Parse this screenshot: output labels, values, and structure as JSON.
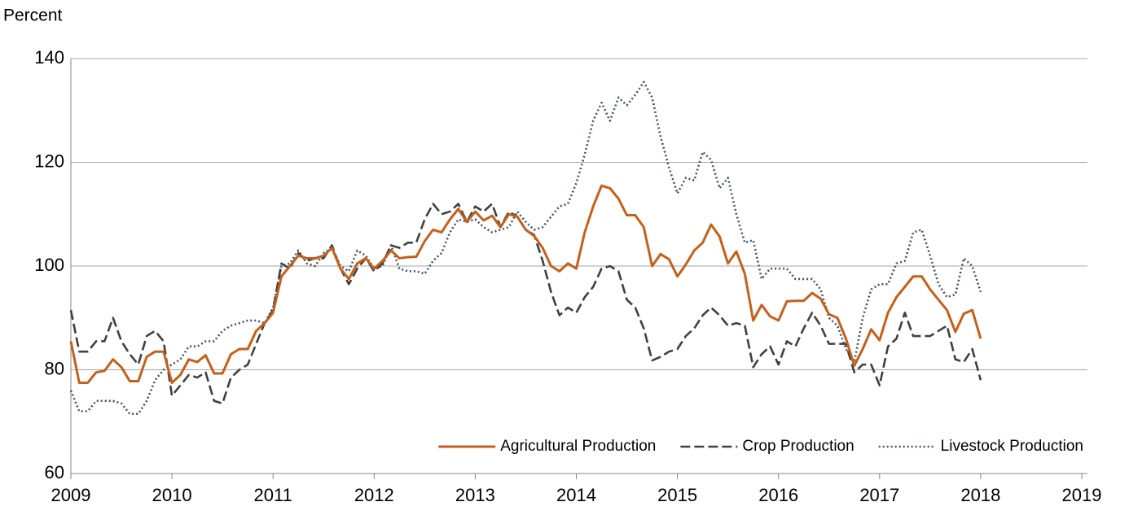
{
  "chart_data": {
    "type": "line",
    "y_label": "Percent",
    "xlim": [
      2009,
      2019
    ],
    "xticks": [
      2009,
      2010,
      2011,
      2012,
      2013,
      2014,
      2015,
      2016,
      2017,
      2018,
      2019
    ],
    "ylim": [
      60,
      140
    ],
    "yticks": [
      60,
      80,
      100,
      120,
      140
    ],
    "grid": true,
    "legend": "lower right",
    "x": [
      2009,
      2009.083,
      2009.167,
      2009.25,
      2009.333,
      2009.417,
      2009.5,
      2009.583,
      2009.667,
      2009.75,
      2009.833,
      2009.917,
      2010,
      2010.083,
      2010.167,
      2010.25,
      2010.333,
      2010.417,
      2010.5,
      2010.583,
      2010.667,
      2010.75,
      2010.833,
      2010.917,
      2011,
      2011.083,
      2011.167,
      2011.25,
      2011.333,
      2011.417,
      2011.5,
      2011.583,
      2011.667,
      2011.75,
      2011.833,
      2011.917,
      2012,
      2012.083,
      2012.167,
      2012.25,
      2012.333,
      2012.417,
      2012.5,
      2012.583,
      2012.667,
      2012.75,
      2012.833,
      2012.917,
      2013,
      2013.083,
      2013.167,
      2013.25,
      2013.333,
      2013.417,
      2013.5,
      2013.583,
      2013.667,
      2013.75,
      2013.833,
      2013.917,
      2014,
      2014.083,
      2014.167,
      2014.25,
      2014.333,
      2014.417,
      2014.5,
      2014.583,
      2014.667,
      2014.75,
      2014.833,
      2014.917,
      2015,
      2015.083,
      2015.167,
      2015.25,
      2015.333,
      2015.417,
      2015.5,
      2015.583,
      2015.667,
      2015.75,
      2015.833,
      2015.917,
      2016,
      2016.083,
      2016.167,
      2016.25,
      2016.333,
      2016.417,
      2016.5,
      2016.583,
      2016.667,
      2016.75,
      2016.833,
      2016.917,
      2017,
      2017.083,
      2017.167,
      2017.25,
      2017.333,
      2017.417,
      2017.5,
      2017.583,
      2017.667,
      2017.75,
      2017.833,
      2017.917,
      2018
    ],
    "series": [
      {
        "name": "Agricultural Production",
        "color": "#c5601a",
        "dash": "solid",
        "values": [
          85.5,
          77.5,
          77.5,
          79.5,
          79.8,
          82,
          80.5,
          77.8,
          77.8,
          82.5,
          83.5,
          83.5,
          77.5,
          79,
          82,
          81.5,
          82.8,
          79.3,
          79.3,
          83,
          84,
          84,
          87.5,
          89,
          91,
          98,
          100,
          102,
          101.5,
          101.5,
          102,
          103.5,
          99.5,
          97.5,
          100.5,
          101.5,
          99.5,
          101,
          103,
          101.5,
          101.7,
          101.8,
          104.8,
          107,
          106.5,
          109,
          111,
          108.5,
          110.5,
          108.8,
          109.7,
          107.5,
          110,
          109.5,
          107,
          105.8,
          103.5,
          100,
          99,
          100.5,
          99.5,
          106.5,
          111.5,
          115.5,
          115,
          113,
          109.8,
          109.8,
          107.5,
          100,
          102.3,
          101.3,
          98,
          100.3,
          103,
          104.5,
          108,
          105.7,
          100.5,
          102.8,
          98.5,
          89.5,
          92.5,
          90.3,
          89.5,
          93.2,
          93.3,
          93.3,
          94.8,
          93.7,
          90.7,
          90,
          86,
          80.8,
          84,
          87.8,
          85.7,
          91,
          94,
          96,
          98,
          98,
          95.5,
          93.5,
          91.5,
          87.3,
          90.8,
          91.5,
          86
        ]
      },
      {
        "name": "Crop Production",
        "color": "#404040",
        "dash": "dashed",
        "values": [
          91.5,
          83.5,
          83.5,
          85.5,
          85.5,
          90,
          85.5,
          83,
          81,
          86.5,
          87.5,
          85.5,
          75,
          77,
          79,
          78.5,
          79.5,
          74,
          73.5,
          78.5,
          80,
          81,
          85,
          89,
          91.5,
          100.5,
          99.5,
          102.5,
          101,
          101.5,
          101.5,
          104,
          99.5,
          96.5,
          99.5,
          101.5,
          99,
          100.5,
          104,
          103.5,
          104.5,
          104.5,
          109,
          112,
          110,
          110.5,
          112,
          108.5,
          111.5,
          110.5,
          112,
          107.5,
          110.5,
          109.5,
          107,
          106,
          101,
          95,
          90.5,
          92,
          91,
          94,
          96,
          99.5,
          100,
          99,
          93.5,
          92,
          88,
          81.8,
          82.5,
          83.5,
          84,
          86.5,
          88,
          90.5,
          92,
          90.5,
          88.5,
          89,
          88.5,
          80.5,
          83,
          84.5,
          81,
          85.5,
          84.5,
          88,
          91,
          88.5,
          85,
          85,
          85,
          79.5,
          81,
          81,
          77,
          84.5,
          86,
          91,
          86.5,
          86.5,
          86.5,
          87.5,
          88.5,
          82,
          81.5,
          84,
          78
        ]
      },
      {
        "name": "Livestock Production",
        "color": "#44546a",
        "dash": "dotted",
        "values": [
          76,
          72,
          72,
          74,
          74,
          74,
          73.5,
          71.5,
          71.5,
          74,
          78,
          80,
          81,
          82,
          84.5,
          84.5,
          85.5,
          85.5,
          87.5,
          88.5,
          89,
          89.5,
          89.5,
          89,
          92,
          100,
          100.5,
          103,
          100.5,
          100,
          102.5,
          103.5,
          100,
          99,
          103,
          102,
          99.5,
          100,
          104,
          99.5,
          99,
          99,
          98.5,
          101,
          102.5,
          106.5,
          109,
          108.5,
          109,
          107.5,
          106.5,
          107,
          107.5,
          110.5,
          108.5,
          107,
          107.5,
          109.5,
          111.5,
          112,
          116,
          121.5,
          128,
          131.5,
          128,
          132.5,
          131,
          133,
          135.5,
          132.5,
          125,
          119,
          114,
          117,
          116.5,
          122,
          120.5,
          115,
          117,
          110,
          104.5,
          105,
          97.5,
          99.5,
          99.5,
          99.5,
          97.5,
          97.5,
          97.5,
          95.5,
          90,
          88.5,
          84,
          81.5,
          90,
          95.5,
          96.5,
          96.5,
          100.5,
          101,
          106.5,
          107,
          102,
          96.5,
          94,
          94.5,
          101.5,
          100,
          95
        ]
      }
    ]
  }
}
